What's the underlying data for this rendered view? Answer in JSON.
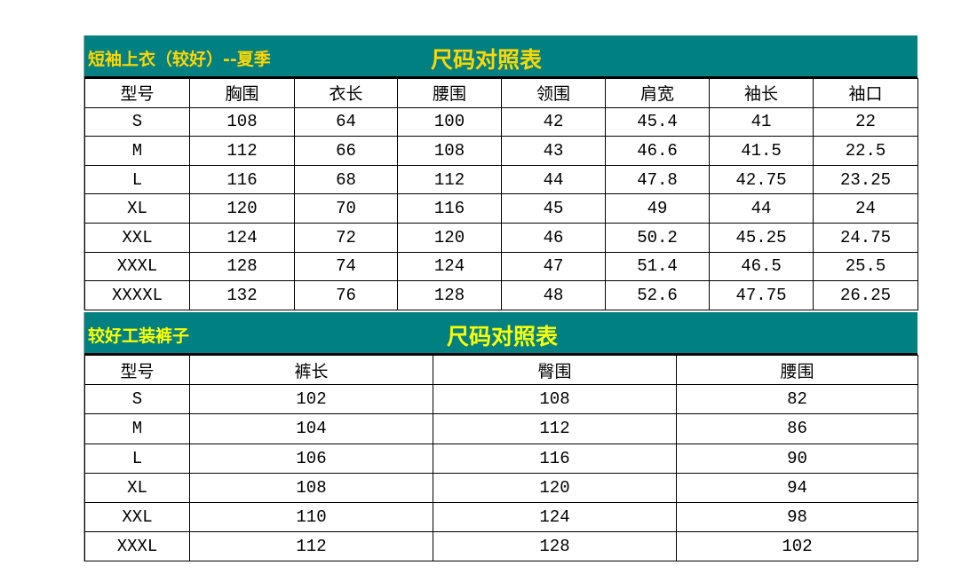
{
  "colors": {
    "band": "#008080",
    "title1": "#FFD700",
    "title2": "#FFFF00"
  },
  "top_table": {
    "subtitle": "短袖上衣（较好）--夏季",
    "title": "尺码对照表",
    "headers": [
      "型号",
      "胸围",
      "衣长",
      "腰围",
      "领围",
      "肩宽",
      "袖长",
      "袖口"
    ],
    "rows": [
      [
        "S",
        "108",
        "64",
        "100",
        "42",
        "45.4",
        "41",
        "22"
      ],
      [
        "M",
        "112",
        "66",
        "108",
        "43",
        "46.6",
        "41.5",
        "22.5"
      ],
      [
        "L",
        "116",
        "68",
        "112",
        "44",
        "47.8",
        "42.75",
        "23.25"
      ],
      [
        "XL",
        "120",
        "70",
        "116",
        "45",
        "49",
        "44",
        "24"
      ],
      [
        "XXL",
        "124",
        "72",
        "120",
        "46",
        "50.2",
        "45.25",
        "24.75"
      ],
      [
        "XXXL",
        "128",
        "74",
        "124",
        "47",
        "51.4",
        "46.5",
        "25.5"
      ],
      [
        "XXXXL",
        "132",
        "76",
        "128",
        "48",
        "52.6",
        "47.75",
        "26.25"
      ]
    ]
  },
  "bottom_table": {
    "subtitle": "较好工装裤子",
    "title": "尺码对照表",
    "headers": [
      "型号",
      "裤长",
      "臀围",
      "腰围"
    ],
    "rows": [
      [
        "S",
        "102",
        "108",
        "82"
      ],
      [
        "M",
        "104",
        "112",
        "86"
      ],
      [
        "L",
        "106",
        "116",
        "90"
      ],
      [
        "XL",
        "108",
        "120",
        "94"
      ],
      [
        "XXL",
        "110",
        "124",
        "98"
      ],
      [
        "XXXL",
        "112",
        "128",
        "102"
      ]
    ]
  }
}
